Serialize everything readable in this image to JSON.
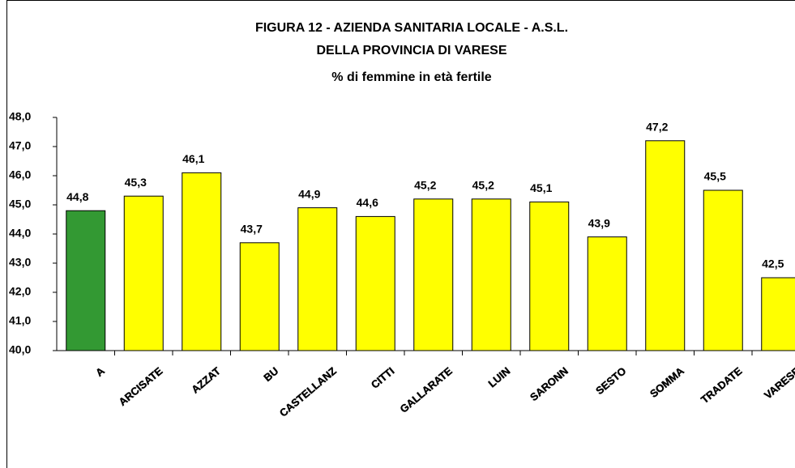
{
  "chart_data": {
    "type": "bar",
    "title": [
      "FIGURA 12 - AZIENDA SANITARIA LOCALE - A.S.L.",
      "DELLA PROVINCIA DI VARESE",
      "% di femmine in età fertile"
    ],
    "categories": [
      "A",
      "ARCISATE",
      "AZZAT",
      "BU",
      "CASTELLANZ",
      "CITTI",
      "GALLARATE",
      "LUIN",
      "SARONN",
      "SESTO",
      "SOMMA",
      "TRADATE",
      "VARESE"
    ],
    "values": [
      44.8,
      45.3,
      46.1,
      43.7,
      44.9,
      44.6,
      45.2,
      45.2,
      45.1,
      43.9,
      47.2,
      45.5,
      42.5
    ],
    "value_labels": [
      "44,8",
      "45,3",
      "46,1",
      "43,7",
      "44,9",
      "44,6",
      "45,2",
      "45,2",
      "45,1",
      "43,9",
      "47,2",
      "45,5",
      "42,5"
    ],
    "colors": [
      "#339933",
      "#ffff00",
      "#ffff00",
      "#ffff00",
      "#ffff00",
      "#ffff00",
      "#ffff00",
      "#ffff00",
      "#ffff00",
      "#ffff00",
      "#ffff00",
      "#ffff00",
      "#ffff00"
    ],
    "ylim": [
      40,
      48
    ],
    "yticks": [
      {
        "value": 40,
        "label": "40,0"
      },
      {
        "value": 41,
        "label": "41,0"
      },
      {
        "value": 42,
        "label": "42,0"
      },
      {
        "value": 43,
        "label": "43,0"
      },
      {
        "value": 44,
        "label": "44,0"
      },
      {
        "value": 45,
        "label": "45,0"
      },
      {
        "value": 46,
        "label": "46,0"
      },
      {
        "value": 47,
        "label": "47,0"
      },
      {
        "value": 48,
        "label": "48,0"
      }
    ],
    "grid": false
  }
}
